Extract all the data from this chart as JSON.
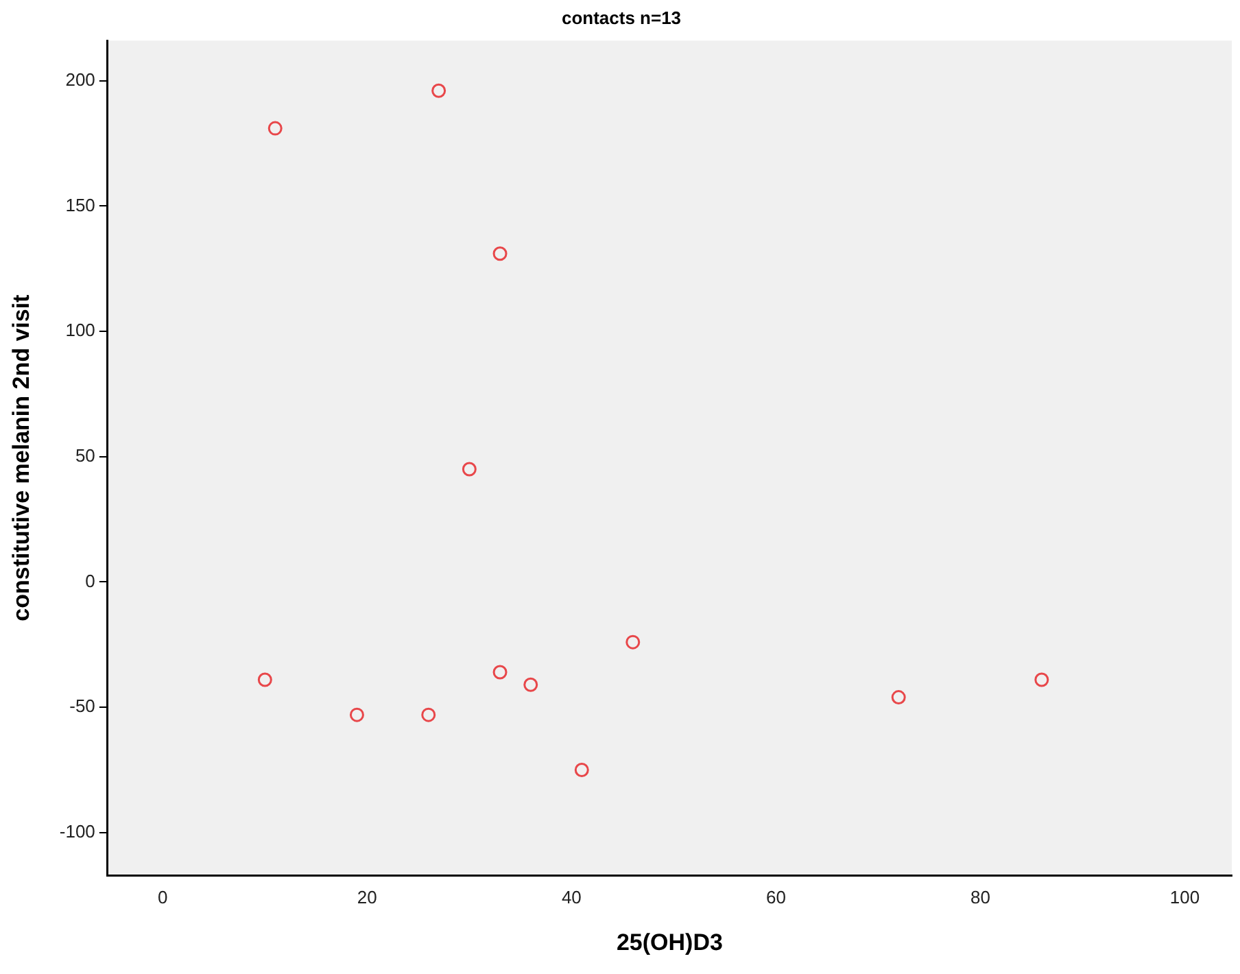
{
  "chart_data": {
    "type": "scatter",
    "title": "contacts n=13",
    "xlabel": "25(OH)D3",
    "ylabel": "constitutive melanin 2nd visit",
    "x": [
      11,
      27,
      33,
      30,
      10,
      19,
      26,
      33,
      36,
      46,
      41,
      72,
      86
    ],
    "values": [
      181,
      196,
      131,
      45,
      -39,
      -53,
      -53,
      -36,
      -41,
      -24,
      -75,
      -46,
      -39
    ],
    "color": "#e8474a",
    "marker": "circle",
    "xlim": [
      -5.4,
      104.6
    ],
    "xticks": [
      0,
      20,
      40,
      60,
      80,
      100
    ],
    "ylim": [
      -117,
      216
    ],
    "yticks": [
      -100,
      -50,
      0,
      50,
      100,
      150,
      200
    ],
    "grid": false
  }
}
